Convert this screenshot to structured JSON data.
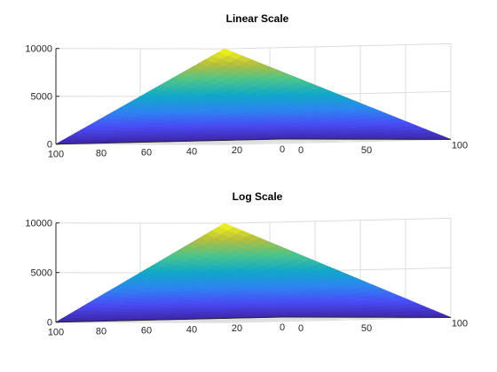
{
  "chart_data": [
    {
      "type": "surface",
      "title": "Linear Scale",
      "function": "z = x * y",
      "x_ticks": [
        "0",
        "50",
        "100"
      ],
      "y_ticks": [
        "100",
        "80",
        "60",
        "40",
        "20",
        "0"
      ],
      "z_ticks": [
        "0",
        "5000",
        "10000"
      ],
      "xlim": [
        0,
        100
      ],
      "ylim": [
        0,
        100
      ],
      "zlim": [
        0,
        10000
      ],
      "colormap": [
        "#3e26a8",
        "#4a4bf5",
        "#2d85f1",
        "#11a8c8",
        "#4bc48c",
        "#b6bd3d",
        "#f9fb15"
      ],
      "grid": true,
      "legend": "none"
    },
    {
      "type": "surface",
      "title": "Log Scale",
      "function": "z = x * y",
      "x_ticks": [
        "0",
        "50",
        "100"
      ],
      "y_ticks": [
        "100",
        "80",
        "60",
        "40",
        "20",
        "0"
      ],
      "z_ticks": [
        "0",
        "5000",
        "10000"
      ],
      "xlim": [
        0,
        100
      ],
      "ylim": [
        0,
        100
      ],
      "zlim": [
        0,
        10000
      ],
      "colormap": [
        "#3e26a8",
        "#4a4bf5",
        "#2d85f1",
        "#11a8c8",
        "#4bc48c",
        "#b6bd3d",
        "#f9fb15"
      ],
      "grid": true,
      "legend": "none"
    }
  ]
}
